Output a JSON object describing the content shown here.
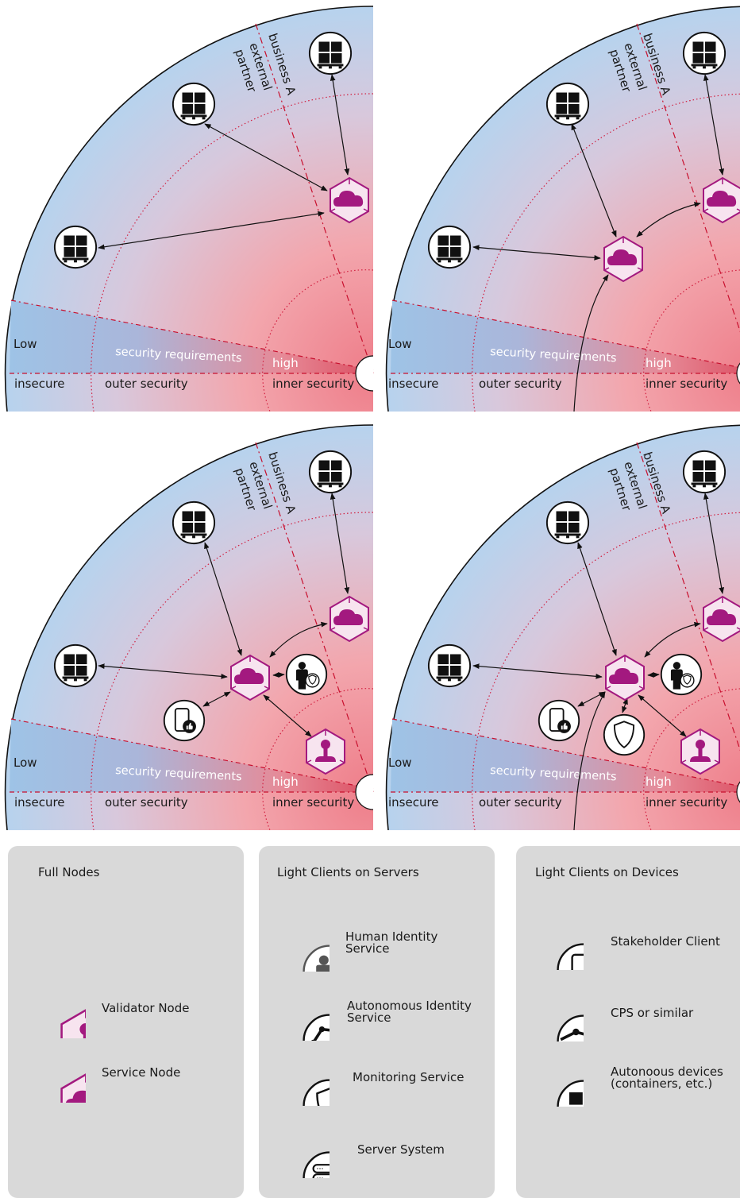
{
  "diagram": {
    "zone_labels": {
      "low": "Low",
      "high": "high",
      "security_requirements": "security requirements",
      "insecure": "insecure",
      "outer_security": "outer security",
      "inner_security": "inner security",
      "business_a": "business A",
      "external": "external",
      "partner": "partner"
    }
  },
  "legend": {
    "full_nodes": {
      "title": "Full Nodes",
      "items": [
        {
          "icon": "validator-node-icon",
          "label": "Validator Node"
        },
        {
          "icon": "service-node-icon",
          "label": "Service Node"
        }
      ]
    },
    "light_clients_servers": {
      "title": "Light Clients on Servers",
      "items": [
        {
          "icon": "human-identity-icon",
          "label_1": "Human Identity",
          "label_2": "Service"
        },
        {
          "icon": "robot-arm-icon",
          "label_1": "Autonomous Identity",
          "label_2": "Service"
        },
        {
          "icon": "shield-icon",
          "label": "Monitoring Service"
        },
        {
          "icon": "server-icon",
          "label": "Server System"
        }
      ]
    },
    "light_clients_devices": {
      "title": "Light Clients on Devices",
      "items": [
        {
          "icon": "phone-thumb-icon",
          "label": "Stakeholder Client"
        },
        {
          "icon": "cps-icon",
          "label": "CPS or similar"
        },
        {
          "icon": "container-icon",
          "label_1": "Autonoous devices",
          "label_2": "(containers, etc.)"
        }
      ]
    }
  },
  "colors": {
    "magenta": "#a3197f",
    "blue_zone": "#a9cbe8",
    "red_zone": "#f08f97",
    "legend_bg": "#d9d9d9"
  }
}
